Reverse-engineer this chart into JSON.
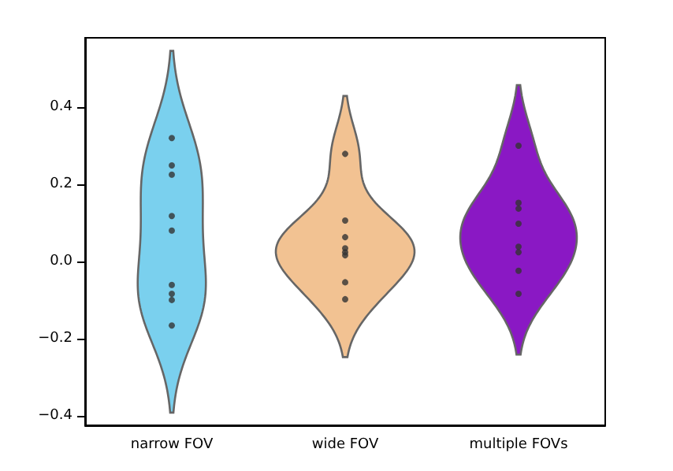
{
  "chart_data": {
    "type": "scatter",
    "categories": [
      "narrow FOV",
      "wide FOV",
      "multiple FOVs"
    ],
    "colors": [
      "#7ad0ee",
      "#f2c292",
      "#8a18c4"
    ],
    "ylim": [
      -0.425,
      0.58
    ],
    "yticks": [
      {
        "value": -0.4,
        "label": "−0.4"
      },
      {
        "value": -0.2,
        "label": "−0.2"
      },
      {
        "value": 0,
        "label": "0.0"
      },
      0.2,
      0.4
    ],
    "grid": false,
    "marker": "circle",
    "series": [
      {
        "type": "scatter",
        "color": "#333333",
        "x": [
          "narrow FOV",
          "narrow FOV",
          "narrow FOV",
          "narrow FOV",
          "narrow FOV",
          "narrow FOV",
          "narrow FOV",
          "narrow FOV",
          "narrow FOV",
          "wide FOV",
          "wide FOV",
          "wide FOV",
          "wide FOV",
          "wide FOV",
          "wide FOV",
          "wide FOV",
          "wide FOV",
          "multiple FOVs",
          "multiple FOVs",
          "multiple FOVs",
          "multiple FOVs",
          "multiple FOVs",
          "multiple FOVs",
          "multiple FOVs",
          "multiple FOVs"
        ],
        "values": [
          0.32,
          0.249,
          0.225,
          0.118,
          0.08,
          -0.061,
          -0.084,
          -0.1,
          -0.166,
          0.279,
          0.106,
          0.063,
          0.034,
          0.024,
          0.016,
          -0.054,
          -0.098,
          0.3,
          0.152,
          0.137,
          0.098,
          0.038,
          0.024,
          -0.024,
          -0.084
        ]
      }
    ]
  }
}
